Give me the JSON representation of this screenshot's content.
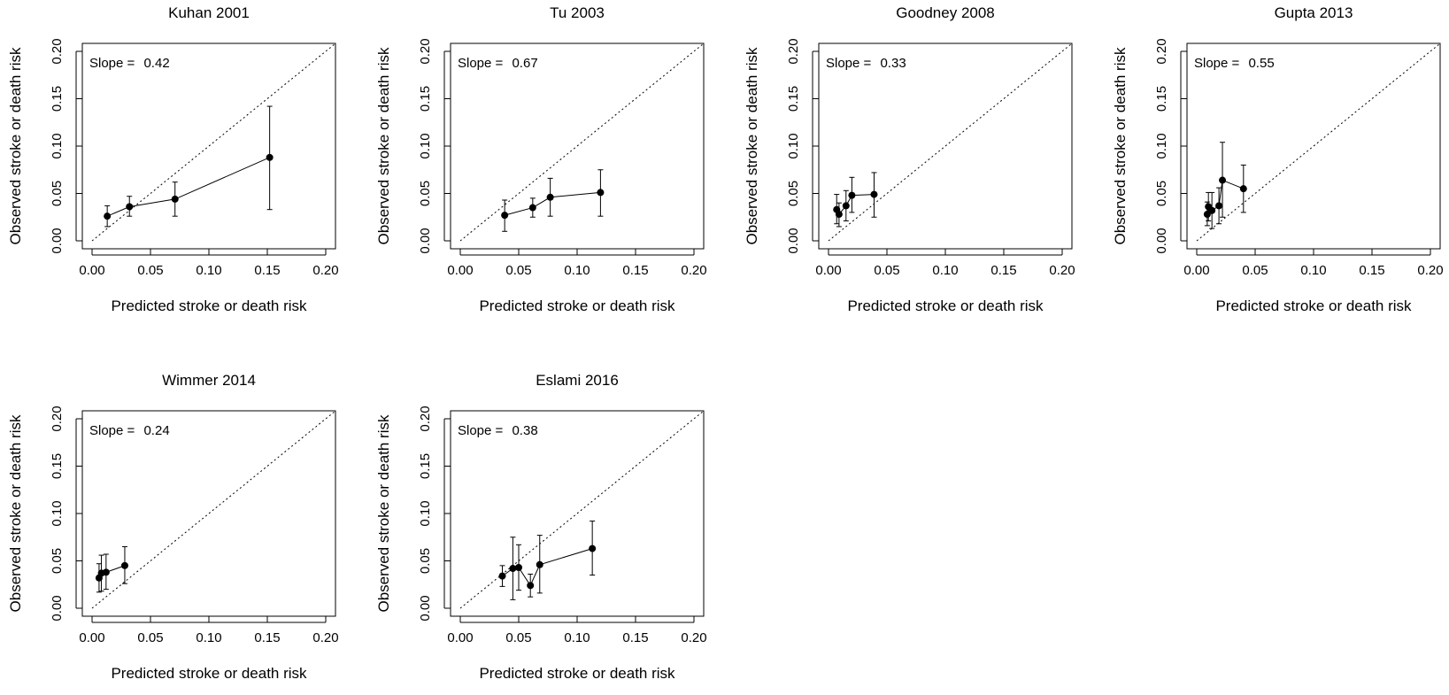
{
  "chart_data": [
    {
      "type": "scatter",
      "title": "Kuhan 2001",
      "xlabel": "Predicted stroke or death risk",
      "ylabel": "Observed stroke or death risk",
      "slope_label": "Slope = ",
      "slope_value": "0.42",
      "xlim": [
        0,
        0.2
      ],
      "ylim": [
        0,
        0.2
      ],
      "xticks": [
        "0.00",
        "0.05",
        "0.10",
        "0.15",
        "0.20"
      ],
      "yticks": [
        "0.00",
        "0.05",
        "0.10",
        "0.15",
        "0.20"
      ],
      "reference_line": "y = x (dotted)",
      "points": [
        {
          "x": 0.013,
          "y": 0.026,
          "lo": 0.015,
          "hi": 0.037
        },
        {
          "x": 0.032,
          "y": 0.036,
          "lo": 0.026,
          "hi": 0.047
        },
        {
          "x": 0.071,
          "y": 0.044,
          "lo": 0.026,
          "hi": 0.062
        },
        {
          "x": 0.152,
          "y": 0.088,
          "lo": 0.033,
          "hi": 0.142
        }
      ]
    },
    {
      "type": "scatter",
      "title": "Tu 2003",
      "xlabel": "Predicted stroke or death risk",
      "ylabel": "Observed stroke or death risk",
      "slope_label": "Slope = ",
      "slope_value": "0.67",
      "xlim": [
        0,
        0.2
      ],
      "ylim": [
        0,
        0.2
      ],
      "xticks": [
        "0.00",
        "0.05",
        "0.10",
        "0.15",
        "0.20"
      ],
      "yticks": [
        "0.00",
        "0.05",
        "0.10",
        "0.15",
        "0.20"
      ],
      "reference_line": "y = x (dotted)",
      "points": [
        {
          "x": 0.038,
          "y": 0.027,
          "lo": 0.01,
          "hi": 0.043
        },
        {
          "x": 0.062,
          "y": 0.035,
          "lo": 0.025,
          "hi": 0.045
        },
        {
          "x": 0.077,
          "y": 0.046,
          "lo": 0.026,
          "hi": 0.066
        },
        {
          "x": 0.12,
          "y": 0.051,
          "lo": 0.026,
          "hi": 0.075
        }
      ]
    },
    {
      "type": "scatter",
      "title": "Goodney 2008",
      "xlabel": "Predicted stroke or death risk",
      "ylabel": "Observed stroke or death risk",
      "slope_label": "Slope = ",
      "slope_value": "0.33",
      "xlim": [
        0,
        0.2
      ],
      "ylim": [
        0,
        0.2
      ],
      "xticks": [
        "0.00",
        "0.05",
        "0.10",
        "0.15",
        "0.20"
      ],
      "yticks": [
        "0.00",
        "0.05",
        "0.10",
        "0.15",
        "0.20"
      ],
      "reference_line": "y = x (dotted)",
      "points": [
        {
          "x": 0.007,
          "y": 0.033,
          "lo": 0.018,
          "hi": 0.049
        },
        {
          "x": 0.009,
          "y": 0.028,
          "lo": 0.015,
          "hi": 0.04
        },
        {
          "x": 0.015,
          "y": 0.037,
          "lo": 0.021,
          "hi": 0.053
        },
        {
          "x": 0.02,
          "y": 0.048,
          "lo": 0.03,
          "hi": 0.067
        },
        {
          "x": 0.039,
          "y": 0.049,
          "lo": 0.025,
          "hi": 0.072
        }
      ]
    },
    {
      "type": "scatter",
      "title": "Gupta 2013",
      "xlabel": "Predicted stroke or death risk",
      "ylabel": "Observed stroke or death risk",
      "slope_label": "Slope = ",
      "slope_value": "0.55",
      "xlim": [
        0,
        0.2
      ],
      "ylim": [
        0,
        0.2
      ],
      "xticks": [
        "0.00",
        "0.05",
        "0.10",
        "0.15",
        "0.20"
      ],
      "yticks": [
        "0.00",
        "0.05",
        "0.10",
        "0.15",
        "0.20"
      ],
      "reference_line": "y = x (dotted)",
      "points": [
        {
          "x": 0.009,
          "y": 0.028,
          "lo": 0.016,
          "hi": 0.041
        },
        {
          "x": 0.01,
          "y": 0.036,
          "lo": 0.021,
          "hi": 0.051
        },
        {
          "x": 0.013,
          "y": 0.032,
          "lo": 0.013,
          "hi": 0.051
        },
        {
          "x": 0.019,
          "y": 0.037,
          "lo": 0.018,
          "hi": 0.056
        },
        {
          "x": 0.022,
          "y": 0.064,
          "lo": 0.025,
          "hi": 0.104
        },
        {
          "x": 0.04,
          "y": 0.055,
          "lo": 0.03,
          "hi": 0.08
        }
      ]
    },
    {
      "type": "scatter",
      "title": "Wimmer 2014",
      "xlabel": "Predicted stroke or death risk",
      "ylabel": "Observed stroke or death risk",
      "slope_label": "Slope = ",
      "slope_value": "0.24",
      "xlim": [
        0,
        0.2
      ],
      "ylim": [
        0,
        0.2
      ],
      "xticks": [
        "0.00",
        "0.05",
        "0.10",
        "0.15",
        "0.20"
      ],
      "yticks": [
        "0.00",
        "0.05",
        "0.10",
        "0.15",
        "0.20"
      ],
      "reference_line": "y = x (dotted)",
      "points": [
        {
          "x": 0.006,
          "y": 0.032,
          "lo": 0.017,
          "hi": 0.047
        },
        {
          "x": 0.008,
          "y": 0.037,
          "lo": 0.018,
          "hi": 0.056
        },
        {
          "x": 0.012,
          "y": 0.038,
          "lo": 0.02,
          "hi": 0.057
        },
        {
          "x": 0.028,
          "y": 0.045,
          "lo": 0.026,
          "hi": 0.065
        }
      ]
    },
    {
      "type": "scatter",
      "title": "Eslami 2016",
      "xlabel": "Predicted stroke or death risk",
      "ylabel": "Observed stroke or death risk",
      "slope_label": "Slope = ",
      "slope_value": "0.38",
      "xlim": [
        0,
        0.2
      ],
      "ylim": [
        0,
        0.2
      ],
      "xticks": [
        "0.00",
        "0.05",
        "0.10",
        "0.15",
        "0.20"
      ],
      "yticks": [
        "0.00",
        "0.05",
        "0.10",
        "0.15",
        "0.20"
      ],
      "reference_line": "y = x (dotted)",
      "points": [
        {
          "x": 0.036,
          "y": 0.034,
          "lo": 0.023,
          "hi": 0.045
        },
        {
          "x": 0.045,
          "y": 0.042,
          "lo": 0.009,
          "hi": 0.075
        },
        {
          "x": 0.05,
          "y": 0.043,
          "lo": 0.019,
          "hi": 0.067
        },
        {
          "x": 0.06,
          "y": 0.024,
          "lo": 0.012,
          "hi": 0.036
        },
        {
          "x": 0.068,
          "y": 0.046,
          "lo": 0.016,
          "hi": 0.077
        },
        {
          "x": 0.113,
          "y": 0.063,
          "lo": 0.035,
          "hi": 0.092
        }
      ]
    }
  ]
}
